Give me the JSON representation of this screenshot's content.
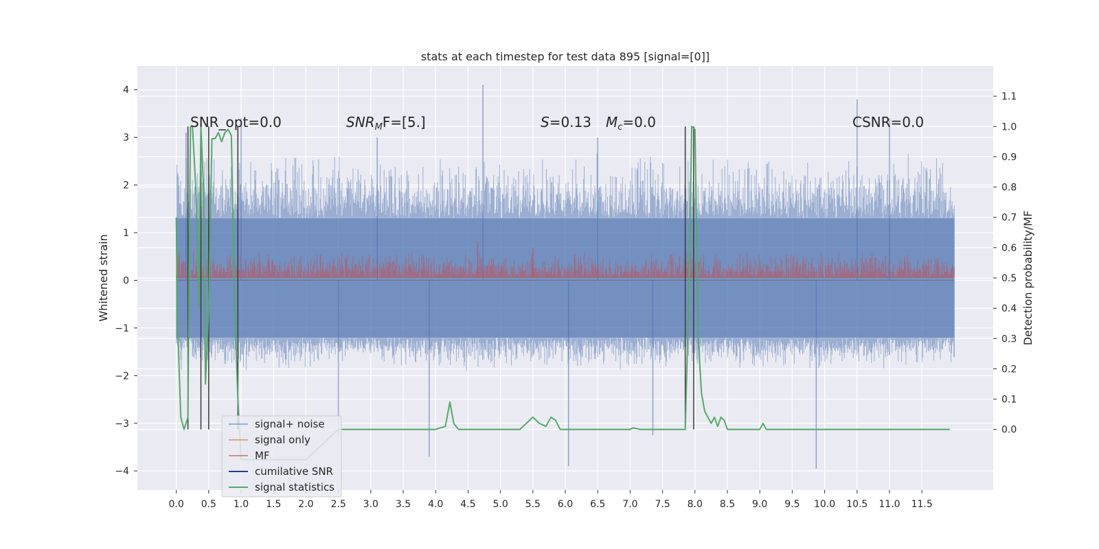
{
  "chart_data": {
    "type": "line",
    "title": "stats at each timestep for test data 895 [signal=[0]]",
    "xlabel": "",
    "ylabel": "Whitened strain",
    "ylabel_right": "Detection probability/MF",
    "xlim": [
      -0.6,
      12.6
    ],
    "ylim": [
      -4.4,
      4.5
    ],
    "ylim_right": [
      -0.2,
      1.2
    ],
    "x_ticks": [
      "0.0",
      "0.5",
      "1.0",
      "1.5",
      "2.0",
      "2.5",
      "3.0",
      "3.5",
      "4.0",
      "4.5",
      "5.0",
      "5.5",
      "6.0",
      "6.5",
      "7.0",
      "7.5",
      "8.0",
      "8.5",
      "9.0",
      "9.5",
      "10.0",
      "10.5",
      "11.0",
      "11.5"
    ],
    "y_ticks": [
      "4",
      "3",
      "2",
      "1",
      "0",
      "−1",
      "−2",
      "−3",
      "−4"
    ],
    "y_ticks_right": [
      "1.1",
      "1.0",
      "0.9",
      "0.8",
      "0.7",
      "0.6",
      "0.5",
      "0.4",
      "0.3",
      "0.2",
      "0.1",
      "0.0"
    ],
    "grid": true,
    "legend_placement": "lower-left",
    "colors": {
      "signal_noise": "#4c72b0",
      "signal_only": "#dd8452",
      "mf": "#c44e52",
      "cumulative_snr": "#1f3f8f",
      "signal_statistics": "#55a868",
      "markers": "#3a3a3a",
      "background": "#eaeaf2",
      "grid": "#ffffff"
    },
    "annotations": {
      "snr_opt": "SNR_opt=0.0",
      "snr_mf_main": "SNR",
      "snr_mf_sub": "M",
      "snr_mf_rest": "F=[5.]",
      "s_main": "S",
      "s_rest": "=0.13",
      "mc_main": "M",
      "mc_sub": "c",
      "mc_rest": "=0.0",
      "csnr": "CSNR=0.0"
    },
    "series": [
      {
        "name": "signal+ noise",
        "axis": "left",
        "style": "noise-band",
        "x_range": [
          0.0,
          12.0
        ],
        "typical_min": -1.7,
        "typical_max": 2.3,
        "band_inner": [
          -1.2,
          1.3
        ],
        "spikes": [
          [
            0.15,
            3.1
          ],
          [
            1.0,
            3.4
          ],
          [
            2.5,
            -3.3
          ],
          [
            3.1,
            3.0
          ],
          [
            3.9,
            -3.7
          ],
          [
            4.73,
            4.1
          ],
          [
            6.05,
            -3.9
          ],
          [
            6.5,
            3.0
          ],
          [
            7.35,
            -3.25
          ],
          [
            9.87,
            -3.95
          ],
          [
            10.5,
            3.8
          ],
          [
            11.0,
            3.4
          ]
        ]
      },
      {
        "name": "signal only",
        "axis": "left",
        "style": "flat-line",
        "value": 0.0
      },
      {
        "name": "MF",
        "axis": "right",
        "style": "noise-band",
        "x_range": [
          0.0,
          12.0
        ],
        "typical_min": 0.49,
        "typical_max": 0.57,
        "spikes": [
          [
            4.65,
            0.62
          ],
          [
            5.5,
            0.6
          ],
          [
            7.85,
            0.6
          ]
        ]
      },
      {
        "name": "cumilative SNR",
        "axis": "left",
        "style": "flat-line",
        "value": 0.0
      },
      {
        "name": "signal statistics",
        "axis": "right",
        "style": "line",
        "x": [
          0.0,
          0.02,
          0.07,
          0.12,
          0.18,
          0.2,
          0.22,
          0.25,
          0.3,
          0.35,
          0.38,
          0.42,
          0.45,
          0.5,
          0.55,
          0.6,
          0.65,
          0.7,
          0.75,
          0.8,
          0.85,
          0.9,
          0.95,
          1.0,
          1.05,
          1.1,
          1.5,
          2.0,
          2.5,
          3.0,
          3.5,
          4.0,
          4.15,
          4.22,
          4.28,
          4.35,
          4.45,
          4.6,
          5.0,
          5.3,
          5.4,
          5.5,
          5.6,
          5.7,
          5.78,
          5.85,
          5.92,
          6.0,
          6.5,
          7.0,
          7.05,
          7.15,
          7.5,
          7.7,
          7.85,
          7.9,
          7.95,
          8.0,
          8.05,
          8.1,
          8.15,
          8.25,
          8.3,
          8.35,
          8.4,
          8.45,
          8.5,
          8.55,
          9.0,
          9.05,
          9.1,
          9.5,
          10.0,
          10.3,
          11.0,
          11.93
        ],
        "y": [
          0.7,
          0.35,
          0.04,
          0.0,
          0.04,
          0.6,
          1.0,
          1.0,
          0.8,
          0.4,
          1.0,
          0.8,
          0.15,
          0.4,
          0.96,
          0.96,
          0.98,
          0.95,
          0.98,
          0.99,
          0.97,
          0.4,
          0.1,
          -0.1,
          -0.1,
          -0.1,
          -0.1,
          -0.1,
          0.0,
          0.0,
          0.0,
          0.0,
          0.01,
          0.09,
          0.02,
          0.0,
          0.0,
          0.0,
          0.0,
          0.0,
          0.02,
          0.04,
          0.02,
          0.01,
          0.04,
          0.03,
          0.0,
          0.0,
          0.0,
          0.0,
          0.005,
          0.0,
          0.0,
          0.0,
          0.0,
          0.4,
          1.0,
          0.99,
          0.3,
          0.12,
          0.06,
          0.02,
          0.04,
          0.01,
          0.04,
          0.03,
          0.0,
          0.0,
          0.0,
          0.02,
          0.0,
          0.0,
          0.0,
          0.0,
          0.0,
          0.0
        ]
      }
    ],
    "markers_x": [
      0.18,
      0.38,
      0.5,
      0.95,
      7.85,
      7.98
    ]
  }
}
